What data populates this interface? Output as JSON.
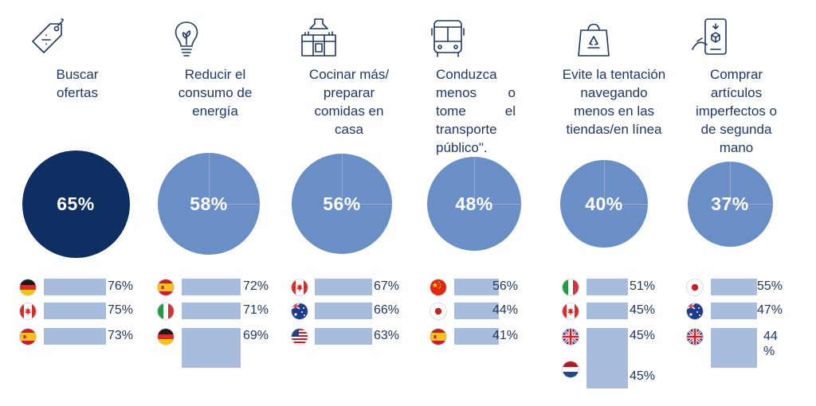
{
  "colors": {
    "dark_circle": "#0d2f62",
    "light_circle": "#6a8fc7",
    "bar": "#a8bddd",
    "text": "#1f3864"
  },
  "chart_data": {
    "type": "bar",
    "title": "",
    "categories": [
      "Buscar ofertas",
      "Reducir el consumo de energía",
      "Cocinar más/ preparar comidas en casa",
      "Conduzca menos o tome el transporte público\".",
      "Evite la tentación navegando menos en las tiendas/en línea",
      "Comprar artículos imperfectos o de segunda mano"
    ],
    "values": [
      65,
      58,
      56,
      48,
      40,
      37
    ],
    "value_labels": [
      "65%",
      "58%",
      "56%",
      "48%",
      "40%",
      "37%"
    ],
    "unit": "%",
    "columns": [
      {
        "icon": "price-tag-icon",
        "label": "Buscar\nofertas",
        "overall": "65%",
        "value": 65,
        "countries": [
          {
            "flag": "germany-flag-icon",
            "value": 76,
            "label": "76%"
          },
          {
            "flag": "canada-flag-icon",
            "value": 75,
            "label": "75%"
          },
          {
            "flag": "spain-flag-icon",
            "value": 73,
            "label": "73%"
          }
        ]
      },
      {
        "icon": "lightbulb-icon",
        "label": "Reducir el\nconsumo de\nenergía",
        "overall": "58%",
        "value": 58,
        "countries": [
          {
            "flag": "spain-flag-icon",
            "value": 72,
            "label": "72%"
          },
          {
            "flag": "italy-flag-icon",
            "value": 71,
            "label": "71%"
          },
          {
            "flag": "germany-flag-icon",
            "value": 69,
            "label": "69%"
          }
        ]
      },
      {
        "icon": "kitchen-icon",
        "label": "Cocinar más/\npreparar\ncomidas en\ncasa",
        "overall": "56%",
        "value": 56,
        "countries": [
          {
            "flag": "canada-flag-icon",
            "value": 67,
            "label": "67%"
          },
          {
            "flag": "australia-flag-icon",
            "value": 66,
            "label": "66%"
          },
          {
            "flag": "usa-flag-icon",
            "value": 63,
            "label": "63%"
          }
        ]
      },
      {
        "icon": "bus-icon",
        "label": "Conduzca menos o tome el transporte público\".",
        "overall": "48%",
        "value": 48,
        "countries": [
          {
            "flag": "china-flag-icon",
            "value": 56,
            "label": "56%"
          },
          {
            "flag": "japan-flag-icon",
            "value": 44,
            "label": "44%"
          },
          {
            "flag": "spain-flag-icon",
            "value": 41,
            "label": "41%"
          }
        ]
      },
      {
        "icon": "shopping-bag-icon",
        "label": "Evite la tentación\nnavegando\nmenos en las\ntiendas/en línea",
        "overall": "40%",
        "value": 40,
        "countries": [
          {
            "flag": "italy-flag-icon",
            "value": 51,
            "label": "51%"
          },
          {
            "flag": "canada-flag-icon",
            "value": 45,
            "label": "45%"
          },
          {
            "flag": "uk-flag-icon",
            "value": 45,
            "label": "45%"
          },
          {
            "flag": "netherlands-flag-icon",
            "value": 45,
            "label": "45%"
          }
        ]
      },
      {
        "icon": "phone-recycle-icon",
        "label": "Comprar\nartículos\nimperfectos o\nde segunda\nmano",
        "overall": "37%",
        "value": 37,
        "countries": [
          {
            "flag": "japan-flag-icon",
            "value": 55,
            "label": "55%"
          },
          {
            "flag": "australia-flag-icon",
            "value": 47,
            "label": "47%"
          },
          {
            "flag": "uk-flag-icon",
            "value": 44,
            "label": "44\n%"
          }
        ]
      }
    ]
  }
}
